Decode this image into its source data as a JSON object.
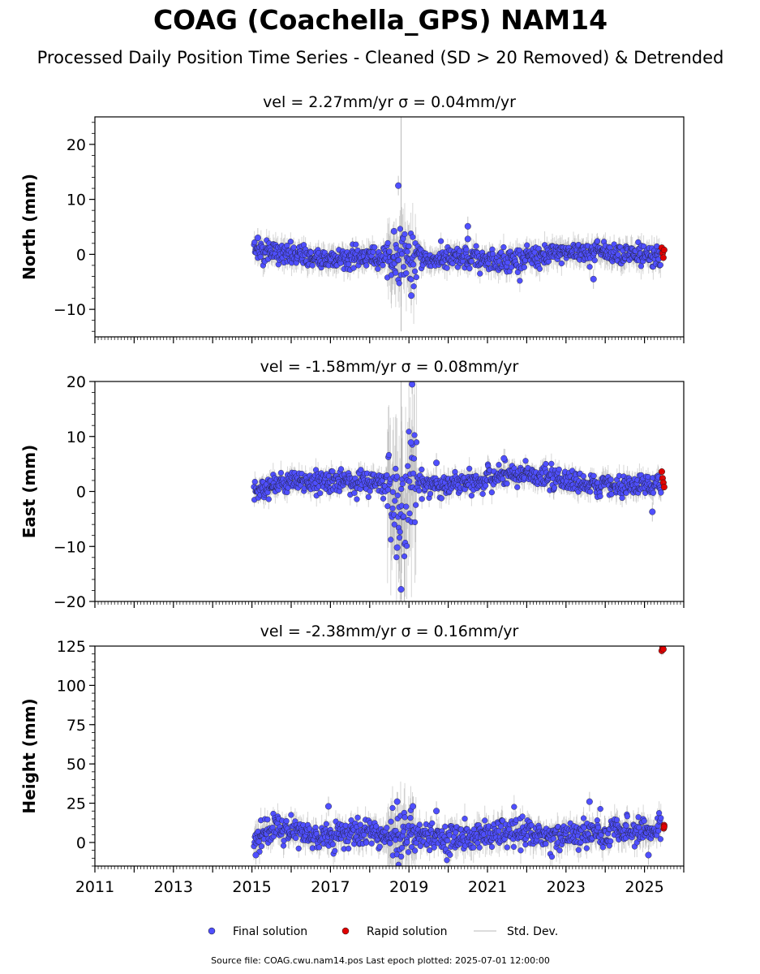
{
  "title": "COAG (Coachella_GPS) NAM14",
  "subtitle": "Processed Daily Position Time Series - Cleaned (SD > 20 Removed) & Detrended",
  "footer": "Source file: COAG.cwu.nam14.pos  Last epoch plotted: 2025-07-01 12:00:00",
  "legend": {
    "final_label": "Final solution",
    "rapid_label": "Rapid solution",
    "std_label": "Std. Dev."
  },
  "colors": {
    "final": "#4f4fff",
    "rapid": "#e00000",
    "std": "#8a8a8a",
    "marker_edge": "#1a1a1a"
  },
  "chart_data": [
    {
      "type": "scatter",
      "component": "north",
      "title": "vel = 2.27mm/yr   σ = 0.04mm/yr",
      "ylabel": "North (mm)",
      "xlabel": "",
      "xlim": [
        2011.0,
        2026.0
      ],
      "ylim": [
        -15,
        25
      ],
      "yticks": [
        -10,
        0,
        10,
        20
      ],
      "yticks_text": [
        "−10",
        "0",
        "10",
        "20"
      ],
      "x_data_range": [
        2015.05,
        2025.42
      ],
      "rapid_x_range": [
        2025.42,
        2025.5
      ],
      "series": [
        {
          "name": "Final solution",
          "x": [
            2015.1,
            2015.5,
            2016.0,
            2016.5,
            2017.0,
            2017.5,
            2018.0,
            2018.4,
            2018.6,
            2018.8,
            2019.0,
            2019.2,
            2019.5,
            2020.0,
            2020.5,
            2021.0,
            2021.5,
            2022.0,
            2022.5,
            2023.0,
            2023.5,
            2024.0,
            2024.5,
            2025.0,
            2025.4
          ],
          "y": [
            0.8,
            0.4,
            -0.2,
            -0.6,
            -0.8,
            -0.5,
            -0.4,
            -0.6,
            -1.5,
            0.5,
            -1.0,
            -0.5,
            -1.0,
            -0.8,
            -0.9,
            -1.0,
            -1.1,
            -0.6,
            -0.3,
            0.3,
            0.6,
            0.5,
            0.2,
            -0.3,
            -0.5
          ]
        },
        {
          "name": "Rapid solution",
          "x": [
            2025.44,
            2025.46,
            2025.48,
            2025.5
          ],
          "y": [
            1.2,
            0.2,
            -0.6,
            0.8
          ]
        }
      ],
      "annotations": {
        "outliers": [
          {
            "x": 2018.73,
            "y": 12.5
          },
          {
            "x": 2020.5,
            "y": 5.1
          },
          {
            "x": 2020.5,
            "y": 2.8
          },
          {
            "x": 2019.06,
            "y": -7.5
          },
          {
            "x": 2018.62,
            "y": 4.2
          },
          {
            "x": 2023.7,
            "y": -4.5
          },
          {
            "x": 2015.15,
            "y": 3.0
          }
        ],
        "max_error_bar": [
          2018.8,
          -14,
          25
        ]
      }
    },
    {
      "type": "scatter",
      "component": "east",
      "title": "vel = -1.58mm/yr   σ = 0.08mm/yr",
      "ylabel": "East (mm)",
      "xlabel": "",
      "xlim": [
        2011.0,
        2026.0
      ],
      "ylim": [
        -20,
        20
      ],
      "yticks": [
        -20,
        -10,
        0,
        10,
        20
      ],
      "yticks_text": [
        "−20",
        "−10",
        "0",
        "10",
        "20"
      ],
      "x_data_range": [
        2015.05,
        2025.42
      ],
      "rapid_x_range": [
        2025.42,
        2025.5
      ],
      "series": [
        {
          "name": "Final solution",
          "x": [
            2015.1,
            2015.5,
            2016.0,
            2016.5,
            2017.0,
            2017.5,
            2018.0,
            2018.4,
            2018.6,
            2018.8,
            2019.0,
            2019.2,
            2019.5,
            2020.0,
            2020.5,
            2021.0,
            2021.5,
            2022.0,
            2022.5,
            2023.0,
            2023.5,
            2024.0,
            2024.5,
            2025.0,
            2025.4
          ],
          "y": [
            0.0,
            1.0,
            1.5,
            1.8,
            2.0,
            1.8,
            1.6,
            1.5,
            -2.0,
            -4.0,
            1.0,
            2.0,
            1.0,
            1.2,
            1.5,
            2.2,
            2.8,
            3.0,
            2.5,
            2.2,
            1.5,
            1.2,
            0.6,
            1.0,
            1.2
          ]
        },
        {
          "name": "Rapid solution",
          "x": [
            2025.44,
            2025.46,
            2025.48,
            2025.5
          ],
          "y": [
            3.6,
            2.4,
            1.6,
            0.8
          ]
        }
      ],
      "annotations": {
        "outliers": [
          {
            "x": 2019.08,
            "y": 19.5
          },
          {
            "x": 2019.05,
            "y": 8.9
          },
          {
            "x": 2018.8,
            "y": -17.8
          },
          {
            "x": 2018.7,
            "y": -10.2
          },
          {
            "x": 2025.2,
            "y": -3.7
          },
          {
            "x": 2021.42,
            "y": 6.0
          },
          {
            "x": 2019.7,
            "y": 5.2
          }
        ],
        "max_error_bar": [
          2018.8,
          -20,
          20
        ]
      }
    },
    {
      "type": "scatter",
      "component": "height",
      "title": "vel = -2.38mm/yr   σ = 0.16mm/yr",
      "ylabel": "Height (mm)",
      "xlabel": "",
      "xlim": [
        2011.0,
        2026.0
      ],
      "ylim": [
        -15,
        125
      ],
      "yticks": [
        0,
        25,
        50,
        75,
        100,
        125
      ],
      "yticks_text": [
        "0",
        "25",
        "50",
        "75",
        "100",
        "125"
      ],
      "xticks": [
        2011,
        2013,
        2015,
        2017,
        2019,
        2021,
        2023,
        2025
      ],
      "xticks_text": [
        "2011",
        "2013",
        "2015",
        "2017",
        "2019",
        "2021",
        "2023",
        "2025"
      ],
      "x_data_range": [
        2015.05,
        2025.42
      ],
      "rapid_x_range": [
        2025.42,
        2025.5
      ],
      "series": [
        {
          "name": "Final solution",
          "x": [
            2015.1,
            2015.5,
            2016.0,
            2016.5,
            2017.0,
            2017.5,
            2018.0,
            2018.4,
            2018.6,
            2018.8,
            2019.0,
            2019.2,
            2019.5,
            2020.0,
            2020.5,
            2021.0,
            2021.5,
            2022.0,
            2022.5,
            2023.0,
            2023.5,
            2024.0,
            2024.5,
            2025.0,
            2025.4
          ],
          "y": [
            2,
            10,
            8,
            5,
            4,
            6,
            7,
            5,
            4,
            6,
            5,
            4,
            6,
            2,
            3,
            5,
            7,
            6,
            4,
            5,
            6,
            5,
            7,
            8,
            9
          ]
        },
        {
          "name": "Rapid solution",
          "x": [
            2025.44,
            2025.46,
            2025.48,
            2025.49,
            2025.5,
            2025.5
          ],
          "y": [
            122,
            124,
            123,
            9,
            11,
            10
          ]
        }
      ],
      "annotations": {
        "outliers": [
          {
            "x": 2018.7,
            "y": 26
          },
          {
            "x": 2016.95,
            "y": 23
          },
          {
            "x": 2019.1,
            "y": 23
          },
          {
            "x": 2023.6,
            "y": 26
          },
          {
            "x": 2019.7,
            "y": 20
          },
          {
            "x": 2015.1,
            "y": -8
          },
          {
            "x": 2025.1,
            "y": -8
          }
        ]
      }
    }
  ]
}
